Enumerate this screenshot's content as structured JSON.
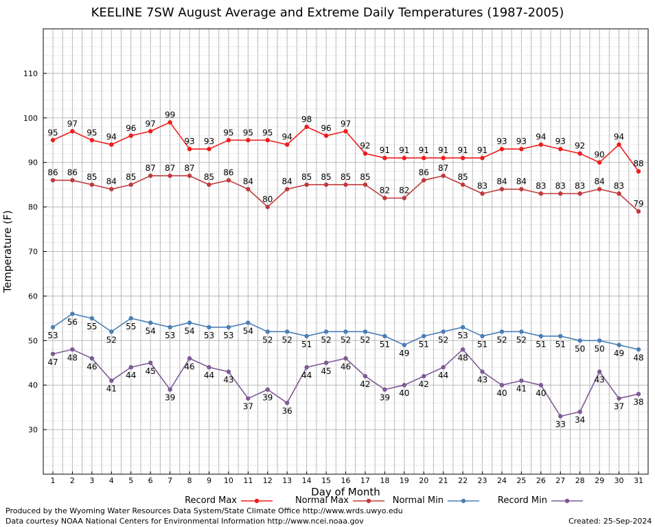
{
  "chart_data": {
    "type": "line",
    "title": "KEELINE 7SW August Average and Extreme Daily Temperatures (1987-2005)",
    "xlabel": "Day of Month",
    "ylabel": "Temperature (F)",
    "xlim": [
      1,
      31
    ],
    "ylim": [
      20,
      120
    ],
    "yticks": [
      30,
      40,
      50,
      60,
      70,
      80,
      90,
      100,
      110
    ],
    "grid": true,
    "legend_position": "bottom",
    "x": [
      1,
      2,
      3,
      4,
      5,
      6,
      7,
      8,
      9,
      10,
      11,
      12,
      13,
      14,
      15,
      16,
      17,
      18,
      19,
      20,
      21,
      22,
      23,
      24,
      25,
      26,
      27,
      28,
      29,
      30,
      31
    ],
    "series": [
      {
        "name": "Record Max",
        "color": "#ee1c1c",
        "values": [
          95,
          97,
          95,
          94,
          96,
          97,
          99,
          93,
          93,
          95,
          95,
          95,
          94,
          98,
          96,
          97,
          92,
          91,
          91,
          91,
          91,
          91,
          91,
          93,
          93,
          94,
          93,
          92,
          90,
          94,
          88
        ]
      },
      {
        "name": "Normal Max",
        "color": "#c0393b",
        "values": [
          86,
          86,
          85,
          84,
          85,
          87,
          87,
          87,
          85,
          86,
          84,
          80,
          84,
          85,
          85,
          85,
          85,
          82,
          82,
          86,
          87,
          85,
          83,
          84,
          84,
          83,
          83,
          83,
          84,
          83,
          79
        ]
      },
      {
        "name": "Normal Min",
        "color": "#4a7fb5",
        "values": [
          53,
          56,
          55,
          52,
          55,
          54,
          53,
          54,
          53,
          53,
          54,
          52,
          52,
          51,
          52,
          52,
          52,
          51,
          49,
          51,
          52,
          53,
          51,
          52,
          52,
          51,
          51,
          50,
          50,
          49,
          48
        ]
      },
      {
        "name": "Record Min",
        "color": "#7d5a96",
        "values": [
          47,
          48,
          46,
          41,
          44,
          45,
          39,
          46,
          44,
          43,
          37,
          39,
          36,
          44,
          45,
          46,
          42,
          39,
          40,
          42,
          44,
          48,
          43,
          40,
          41,
          40,
          33,
          34,
          43,
          37,
          38
        ]
      }
    ]
  },
  "footer": {
    "produced_by": "Produced by the Wyoming Water Resources Data System/State Climate Office http://www.wrds.uwyo.edu",
    "data_courtesy": "Data courtesy NOAA National Centers for Environmental Information http://www.ncei.noaa.gov",
    "created": "Created:  25-Sep-2024"
  }
}
